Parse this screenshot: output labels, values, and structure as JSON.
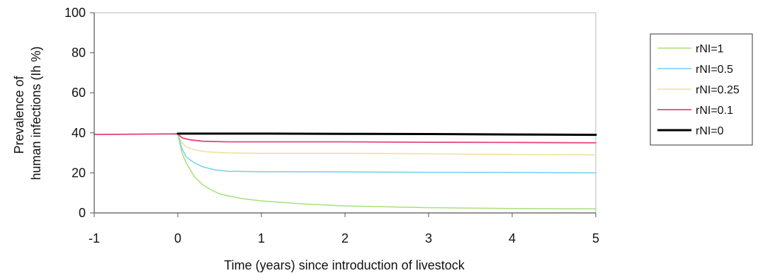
{
  "chart_data": {
    "type": "line",
    "title": "",
    "xlabel": "Time (years) since introduction of livestock",
    "ylabel": [
      "Prevalence of",
      "human infections (Ih %)"
    ],
    "xlim": [
      -1,
      5
    ],
    "ylim": [
      0,
      100
    ],
    "x_ticks": [
      -1,
      0,
      1,
      2,
      3,
      4,
      5
    ],
    "y_ticks": [
      0,
      20,
      40,
      60,
      80,
      100
    ],
    "grid": false,
    "legend_position": "right",
    "series": [
      {
        "name": "rNI=1",
        "color": "#a6e07a",
        "width": 1.5,
        "points": [
          [
            -1,
            39.2
          ],
          [
            0,
            39.5
          ],
          [
            0.05,
            30
          ],
          [
            0.1,
            25
          ],
          [
            0.2,
            18
          ],
          [
            0.3,
            14
          ],
          [
            0.4,
            11.5
          ],
          [
            0.5,
            9.5
          ],
          [
            0.6,
            8.5
          ],
          [
            0.8,
            7
          ],
          [
            1,
            6
          ],
          [
            1.5,
            4.5
          ],
          [
            2,
            3.5
          ],
          [
            3,
            2.6
          ],
          [
            4,
            2.2
          ],
          [
            5,
            2
          ]
        ]
      },
      {
        "name": "rNI=0.5",
        "color": "#6fd0ec",
        "width": 1.5,
        "points": [
          [
            -1,
            39.2
          ],
          [
            0,
            39.5
          ],
          [
            0.05,
            32
          ],
          [
            0.1,
            28
          ],
          [
            0.2,
            25
          ],
          [
            0.3,
            23
          ],
          [
            0.45,
            21.5
          ],
          [
            0.6,
            20.8
          ],
          [
            1,
            20.6
          ],
          [
            2,
            20.5
          ],
          [
            3,
            20.3
          ],
          [
            4,
            20.2
          ],
          [
            5,
            20
          ]
        ]
      },
      {
        "name": "rNI=0.25",
        "color": "#f4dc9c",
        "width": 1.5,
        "points": [
          [
            -1,
            39.2
          ],
          [
            0,
            39.5
          ],
          [
            0.05,
            35
          ],
          [
            0.1,
            33
          ],
          [
            0.2,
            31.5
          ],
          [
            0.35,
            30.5
          ],
          [
            0.6,
            30
          ],
          [
            1,
            29.8
          ],
          [
            2,
            29.8
          ],
          [
            3,
            29.5
          ],
          [
            4,
            29.2
          ],
          [
            5,
            29
          ]
        ]
      },
      {
        "name": "rNI=0.1",
        "color": "#e8457a",
        "width": 1.8,
        "points": [
          [
            -1,
            39.2
          ],
          [
            0,
            39.5
          ],
          [
            0.05,
            37.5
          ],
          [
            0.15,
            36.5
          ],
          [
            0.3,
            35.8
          ],
          [
            0.6,
            35.5
          ],
          [
            1,
            35.5
          ],
          [
            2,
            35.5
          ],
          [
            3,
            35.3
          ],
          [
            4,
            35.2
          ],
          [
            5,
            35
          ]
        ]
      },
      {
        "name": "rNI=0",
        "color": "#000000",
        "width": 3,
        "points": [
          [
            0,
            39.6
          ],
          [
            1,
            39.6
          ],
          [
            2,
            39.5
          ],
          [
            3,
            39.4
          ],
          [
            4,
            39.2
          ],
          [
            5,
            39
          ]
        ]
      }
    ]
  }
}
